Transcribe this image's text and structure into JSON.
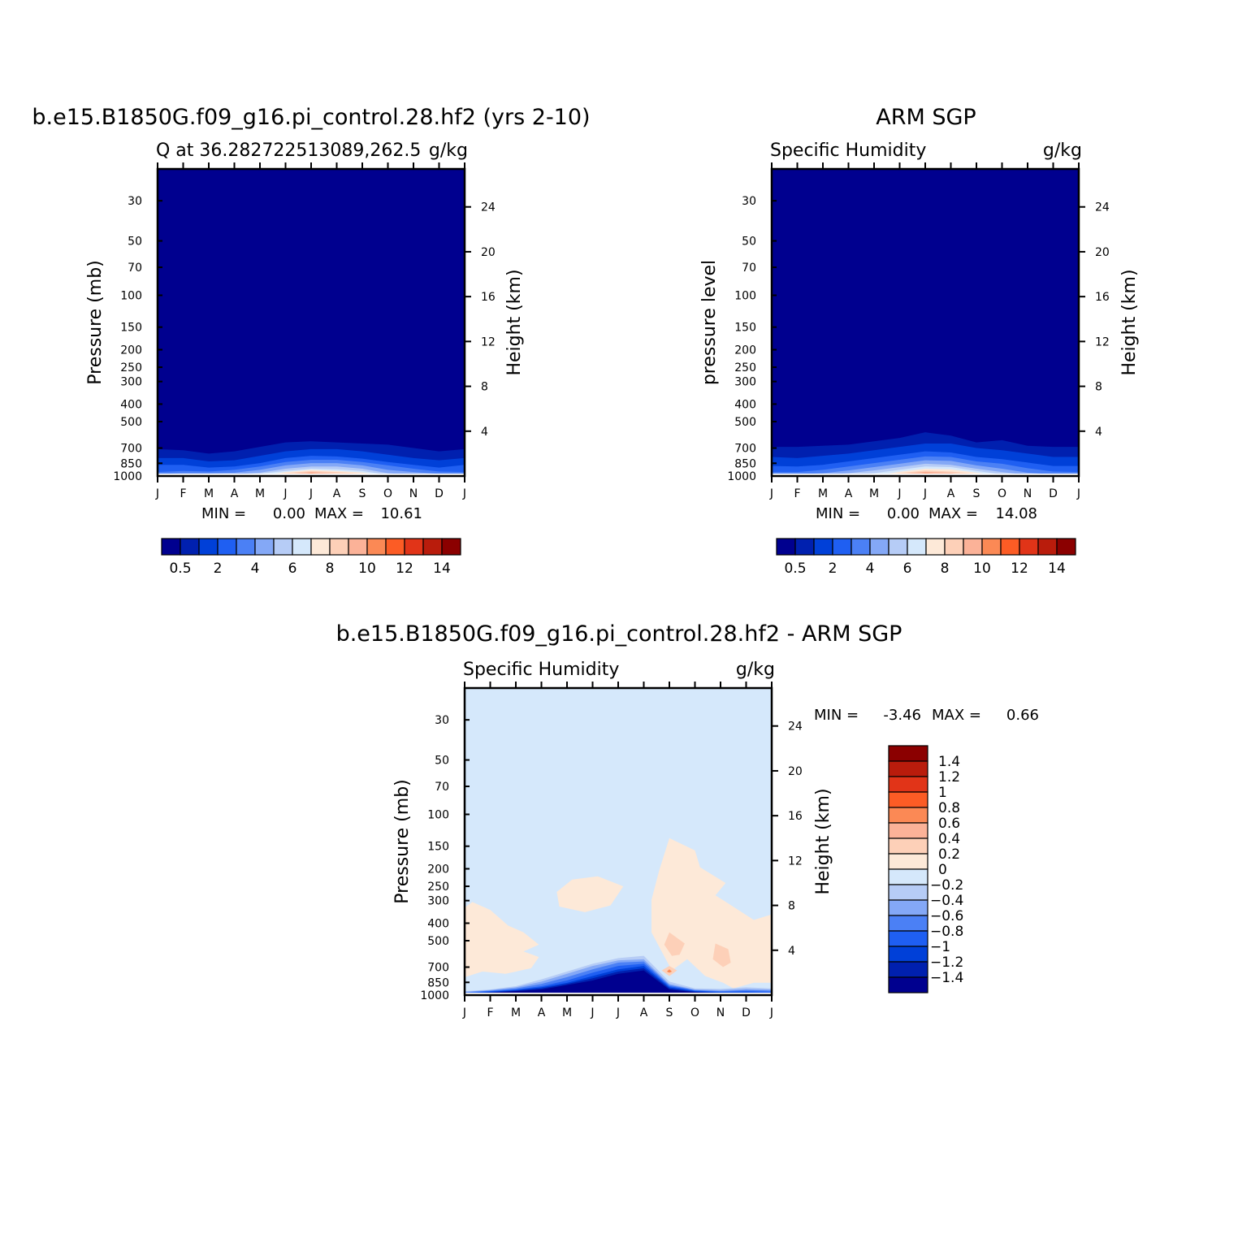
{
  "palette": [
    "#00008f",
    "#0020af",
    "#0040d8",
    "#1f5ff2",
    "#4b80f5",
    "#84a8f6",
    "#b6ccf6",
    "#d5e8fb",
    "#fde9d8",
    "#fdd0b8",
    "#fbb298",
    "#fb8955",
    "#fc5c25",
    "#e13418",
    "#b91c0c",
    "#8b0000"
  ],
  "axes": {
    "left_ylabel": "Pressure (mb)",
    "left_ylabel_obs": "pressure level",
    "right_ylabel": "Height (km)",
    "pressure_ticks": [
      30,
      50,
      70,
      100,
      150,
      200,
      250,
      300,
      400,
      500,
      700,
      850,
      1000
    ],
    "height_ticks": [
      4,
      8,
      12,
      16,
      20,
      24
    ],
    "month_ticks": [
      "J",
      "F",
      "M",
      "A",
      "M",
      "J",
      "J",
      "A",
      "S",
      "O",
      "N",
      "D",
      "J"
    ]
  },
  "chart_data": [
    {
      "type": "heatmap",
      "title": "b.e15.B1850G.f09_g16.pi_control.28.hf2 (yrs 2-10)",
      "subtitle_left": "Q at 36.282722513089,262.5",
      "subtitle_right": "g/kg",
      "ylabel": "Pressure (mb)",
      "y2label": "Height (km)",
      "x": [
        "J",
        "F",
        "M",
        "A",
        "M",
        "J",
        "J",
        "A",
        "S",
        "O",
        "N",
        "D",
        "J"
      ],
      "ylim": [
        1000,
        30
      ],
      "y2lim": [
        0,
        25
      ],
      "stats": {
        "min_label": "MIN =",
        "min": "0.00",
        "max_label": "MAX =",
        "max": "10.61"
      },
      "colorbar": {
        "labels": [
          "0.5",
          "2",
          "4",
          "6",
          "8",
          "10",
          "12",
          "14"
        ]
      },
      "level_boundaries_km": [
        [
          2.4,
          1.6,
          1.0,
          0.35,
          0.18,
          0.1
        ],
        [
          2.3,
          1.6,
          1.0,
          0.45,
          0.25,
          0.15
        ],
        [
          2.0,
          1.3,
          0.75,
          0.4,
          0.25,
          0.1
        ],
        [
          2.2,
          1.4,
          0.85,
          0.55,
          0.3,
          0.15
        ],
        [
          2.6,
          1.8,
          1.15,
          0.85,
          0.55,
          0.3,
          0.22
        ],
        [
          3.0,
          2.2,
          1.6,
          1.25,
          0.95,
          0.65,
          0.45,
          0.35,
          0.25,
          0.15,
          0.08
        ],
        [
          3.1,
          2.4,
          1.8,
          1.45,
          1.15,
          0.85,
          0.65,
          0.55,
          0.45,
          0.35,
          0.25,
          0.12
        ],
        [
          3.0,
          2.4,
          1.75,
          1.45,
          1.15,
          0.85,
          0.6,
          0.45,
          0.35,
          0.22,
          0.12
        ],
        [
          2.9,
          2.2,
          1.55,
          1.25,
          0.95,
          0.65,
          0.45,
          0.32,
          0.22
        ],
        [
          2.8,
          1.9,
          1.25,
          0.95,
          0.55,
          0.25,
          0.1
        ],
        [
          2.5,
          1.6,
          1.0,
          0.65,
          0.35,
          0.1
        ],
        [
          2.2,
          1.4,
          0.75,
          0.4,
          0.2,
          0.1
        ],
        [
          2.4,
          1.6,
          1.0,
          0.35,
          0.18,
          0.1
        ]
      ]
    },
    {
      "type": "heatmap",
      "title": "ARM SGP",
      "subtitle_left": "Specific Humidity",
      "subtitle_right": "g/kg",
      "ylabel": "pressure level",
      "y2label": "Height (km)",
      "x": [
        "J",
        "F",
        "M",
        "A",
        "M",
        "J",
        "J",
        "A",
        "S",
        "O",
        "N",
        "D",
        "J"
      ],
      "ylim": [
        1000,
        30
      ],
      "y2lim": [
        0,
        25
      ],
      "stats": {
        "min_label": "MIN =",
        "min": "0.00",
        "max_label": "MAX =",
        "max": "14.08"
      },
      "colorbar": {
        "labels": [
          "0.5",
          "2",
          "4",
          "6",
          "8",
          "10",
          "12",
          "14"
        ]
      },
      "level_boundaries_km": [
        [
          2.6,
          1.7,
          0.9,
          0.35,
          0.1
        ],
        [
          2.6,
          1.6,
          0.85,
          0.35,
          0.15
        ],
        [
          2.7,
          1.8,
          1.0,
          0.55,
          0.25,
          0.1
        ],
        [
          2.8,
          2.0,
          1.3,
          0.85,
          0.5,
          0.25,
          0.1
        ],
        [
          3.1,
          2.3,
          1.6,
          1.15,
          0.8,
          0.5,
          0.25
        ],
        [
          3.4,
          2.6,
          1.9,
          1.45,
          1.1,
          0.8,
          0.55,
          0.38,
          0.25,
          0.15
        ],
        [
          3.9,
          2.9,
          2.2,
          1.75,
          1.4,
          1.1,
          0.85,
          0.65,
          0.5,
          0.38,
          0.25,
          0.15,
          0.08
        ],
        [
          3.6,
          2.9,
          2.1,
          1.7,
          1.35,
          1.0,
          0.8,
          0.6,
          0.4,
          0.28,
          0.15,
          0.06
        ],
        [
          3.0,
          2.5,
          1.7,
          1.3,
          0.95,
          0.65,
          0.45,
          0.3,
          0.2
        ],
        [
          3.2,
          2.3,
          1.5,
          1.1,
          0.65,
          0.35,
          0.15
        ],
        [
          2.7,
          2.0,
          1.2,
          0.7,
          0.3,
          0.1
        ],
        [
          2.6,
          1.7,
          0.9,
          0.4,
          0.15
        ],
        [
          2.6,
          1.7,
          0.9,
          0.35,
          0.1
        ]
      ]
    },
    {
      "type": "heatmap",
      "title": "b.e15.B1850G.f09_g16.pi_control.28.hf2 - ARM SGP",
      "subtitle_left": "Specific Humidity",
      "subtitle_right": "g/kg",
      "ylabel": "Pressure (mb)",
      "y2label": "Height (km)",
      "x": [
        "J",
        "F",
        "M",
        "A",
        "M",
        "J",
        "J",
        "A",
        "S",
        "O",
        "N",
        "D",
        "J"
      ],
      "ylim": [
        1000,
        30
      ],
      "y2lim": [
        0,
        25
      ],
      "background_level": "-0.2 to 0",
      "stats": {
        "min_label": "MIN =",
        "min": "-3.46",
        "max_label": "MAX =",
        "max": "0.66"
      },
      "colorbar": {
        "labels": [
          "1.4",
          "1.2",
          "1",
          "0.8",
          "0.6",
          "0.4",
          "0.2",
          "0",
          "-0.2",
          "-0.4",
          "-0.6",
          "-0.8",
          "-1",
          "-1.2",
          "-1.4"
        ]
      },
      "positive_regions_km": [
        {
          "level": "0 to 0.2",
          "points": [
            [
              0,
              7.8
            ],
            [
              0.3,
              8.3
            ],
            [
              1.0,
              7.6
            ],
            [
              1.4,
              6.8
            ],
            [
              1.7,
              6.2
            ],
            [
              2.3,
              5.6
            ],
            [
              2.9,
              4.5
            ],
            [
              2.3,
              3.9
            ],
            [
              2.9,
              3.4
            ],
            [
              2.6,
              2.4
            ],
            [
              1.6,
              1.9
            ],
            [
              0.7,
              2.1
            ],
            [
              0,
              1.6
            ]
          ]
        },
        {
          "level": "0 to 0.2",
          "points": [
            [
              3.6,
              9.2
            ],
            [
              4.2,
              10.3
            ],
            [
              5.2,
              10.6
            ],
            [
              6.2,
              9.7
            ],
            [
              5.7,
              8.0
            ],
            [
              4.7,
              7.4
            ],
            [
              3.7,
              7.9
            ]
          ]
        },
        {
          "level": "0 to 0.2",
          "points": [
            [
              8.0,
              14.0
            ],
            [
              9.0,
              12.9
            ],
            [
              9.2,
              11.4
            ],
            [
              10.2,
              10.0
            ],
            [
              9.8,
              8.9
            ],
            [
              11.3,
              6.7
            ],
            [
              12.0,
              7.2
            ],
            [
              12.0,
              1.1
            ],
            [
              11.3,
              1.1
            ],
            [
              10.5,
              0.6
            ],
            [
              10.1,
              1.1
            ],
            [
              9.4,
              1.7
            ],
            [
              8.7,
              3.2
            ],
            [
              8.1,
              2.2
            ],
            [
              7.7,
              3.9
            ],
            [
              7.3,
              5.6
            ],
            [
              7.3,
              8.5
            ],
            [
              7.6,
              11.1
            ]
          ]
        },
        {
          "level": "0.2 to 0.4",
          "points": [
            [
              8.0,
              5.6
            ],
            [
              8.6,
              4.6
            ],
            [
              8.4,
              3.6
            ],
            [
              8.1,
              3.5
            ],
            [
              7.8,
              4.5
            ]
          ]
        },
        {
          "level": "0.2 to 0.4",
          "points": [
            [
              8.0,
              2.6
            ],
            [
              8.3,
              2.2
            ],
            [
              8.0,
              1.7
            ],
            [
              7.7,
              2.2
            ]
          ]
        },
        {
          "level": "0.2 to 0.4",
          "points": [
            [
              9.8,
              4.6
            ],
            [
              10.3,
              4.1
            ],
            [
              10.4,
              2.9
            ],
            [
              10.1,
              2.5
            ],
            [
              9.7,
              3.2
            ]
          ]
        },
        {
          "level": "0.6 to 0.8",
          "points": [
            [
              8.0,
              2.3
            ],
            [
              8.1,
              2.1
            ],
            [
              8.0,
              2.0
            ],
            [
              7.9,
              2.1
            ]
          ]
        }
      ],
      "negative_boundaries_km": {
        "-0.2 to -0.4": [
          0.35,
          0.5,
          0.8,
          1.4,
          2.1,
          2.8,
          3.3,
          3.5,
          1.2,
          0.6,
          0.55,
          0.7,
          0.6
        ],
        "-0.4 to -0.6": [
          0.3,
          0.45,
          0.7,
          1.2,
          1.9,
          2.6,
          3.1,
          3.2,
          1.0,
          0.5,
          0.45,
          0.55,
          0.5
        ],
        "-0.6 to -0.8": [
          0.25,
          0.4,
          0.6,
          1.0,
          1.6,
          2.3,
          2.9,
          3.0,
          0.9,
          0.45,
          0.35,
          0.45,
          0.4
        ],
        "-0.8 to -1": [
          0.2,
          0.35,
          0.5,
          0.8,
          1.3,
          2.0,
          2.6,
          2.8,
          0.8,
          0.4,
          0.3,
          0.35,
          0.3
        ],
        "-1 to -1.2": [
          0.15,
          0.3,
          0.45,
          0.7,
          1.1,
          1.7,
          2.3,
          2.6,
          0.7,
          0.35,
          0.25,
          0.25,
          0.2
        ],
        "-1.2 to -1.4": [
          0.1,
          0.25,
          0.4,
          0.6,
          1.0,
          1.5,
          2.1,
          2.4,
          0.6,
          0.3,
          0.2,
          0.2,
          0.15
        ],
        "< -1.4": [
          0.05,
          0.2,
          0.35,
          0.5,
          0.9,
          1.3,
          1.9,
          2.2,
          0.5,
          0.25,
          0.15,
          0.15,
          0.1
        ]
      }
    }
  ]
}
